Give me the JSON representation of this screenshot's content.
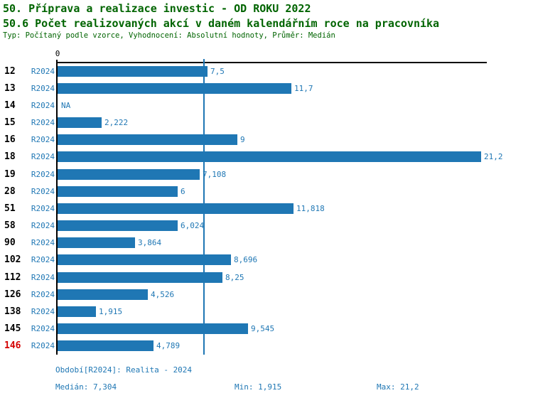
{
  "header": {
    "title_line1": "50. Příprava a realizace investic - OD ROKU 2022",
    "title_line2": "50.6 Počet realizovaných akcí v daném kalendářním roce na pracovníka",
    "meta_line": "Typ: Počítaný podle vzorce, Vyhodnocení: Absolutní hodnoty, Průměr: Medián",
    "title_color": "#006400"
  },
  "chart_data": {
    "type": "bar",
    "orientation": "horizontal",
    "title": "50.6 Počet realizovaných akcí v daném kalendářním roce na pracovníka",
    "categories": [
      "12",
      "13",
      "14",
      "15",
      "16",
      "18",
      "19",
      "28",
      "51",
      "58",
      "90",
      "102",
      "112",
      "126",
      "138",
      "145",
      "146"
    ],
    "series_label": "R2024",
    "values": [
      7.5,
      11.7,
      null,
      2.222,
      9,
      21.2,
      7.108,
      6,
      11.818,
      6.024,
      3.864,
      8.696,
      8.25,
      4.526,
      1.915,
      9.545,
      4.789
    ],
    "value_labels": [
      "7,5",
      "11,7",
      "NA",
      "2,222",
      "9",
      "21,2",
      "7,108",
      "6",
      "11,818",
      "6,024",
      "3,864",
      "8,696",
      "8,25",
      "4,526",
      "1,915",
      "9,545",
      "4,789"
    ],
    "na_label": "NA",
    "axis_zero_label": "0",
    "xlim": [
      0,
      21.5
    ],
    "grid": false,
    "legend_position": "none",
    "median_value": 7.304,
    "min_value": 1.915,
    "max_value": 21.2,
    "highlight_category": "146",
    "bar_color": "#1f77b4",
    "label_color": "#1f77b4",
    "highlight_color": "#d40000",
    "median_line_color": "#1f77b4"
  },
  "footer": {
    "period_label": "Období[R2024]: Realita - 2024",
    "median_label": "Medián: 7,304",
    "min_label": "Min: 1,915",
    "max_label": "Max: 21,2"
  }
}
